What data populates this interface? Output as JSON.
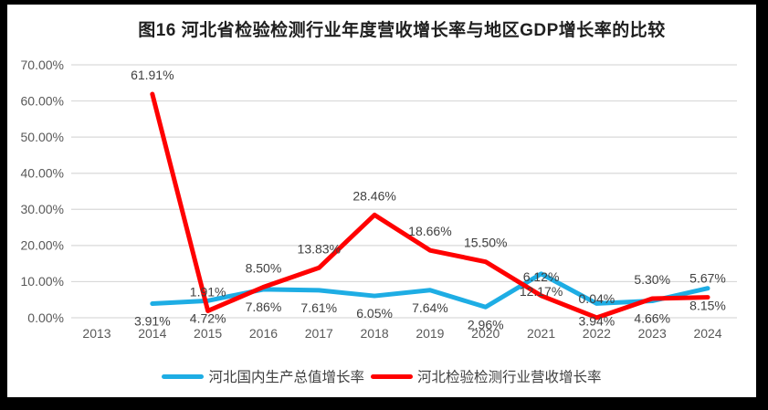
{
  "frame": {
    "border_color": "#000000",
    "canvas_background": "#ffffff"
  },
  "chart_data": {
    "type": "line",
    "title": "图16 河北省检验检测行业年度营收增长率与地区GDP增长率的比较",
    "categories": [
      "2013",
      "2014",
      "2015",
      "2016",
      "2017",
      "2018",
      "2019",
      "2020",
      "2021",
      "2022",
      "2023",
      "2024"
    ],
    "y_axis": {
      "min": 0,
      "max": 70,
      "step": 10,
      "tick_labels": [
        "0.00%",
        "10.00%",
        "20.00%",
        "30.00%",
        "40.00%",
        "50.00%",
        "60.00%",
        "70.00%"
      ]
    },
    "grid": true,
    "legend_position": "bottom",
    "gridline_color": "#D9D9D9",
    "text_colors": {
      "title": "#1f1f1f",
      "axis": "#595959",
      "data_label": "#404040"
    },
    "series": [
      {
        "name": "河北国内生产总值增长率",
        "color": "#1EADE4",
        "label_position": "below",
        "values": [
          null,
          3.91,
          4.72,
          7.86,
          7.61,
          6.05,
          7.64,
          2.96,
          12.17,
          3.94,
          4.66,
          8.15
        ],
        "labels": [
          null,
          "3.91%",
          "4.72%",
          "7.86%",
          "7.61%",
          "6.05%",
          "7.64%",
          "2.96%",
          "12.17%",
          "3.94%",
          "4.66%",
          "8.15%"
        ]
      },
      {
        "name": "河北检验检测行业营收增长率",
        "color": "#FF0000",
        "label_position": "above",
        "values": [
          null,
          61.91,
          1.91,
          8.5,
          13.83,
          28.46,
          18.66,
          15.5,
          6.12,
          0.04,
          5.3,
          5.67
        ],
        "labels": [
          null,
          "61.91%",
          "1.91%",
          "8.50%",
          "13.83%",
          "28.46%",
          "18.66%",
          "15.50%",
          "6.12%",
          "0.04%",
          "5.30%",
          "5.67%"
        ]
      }
    ]
  }
}
